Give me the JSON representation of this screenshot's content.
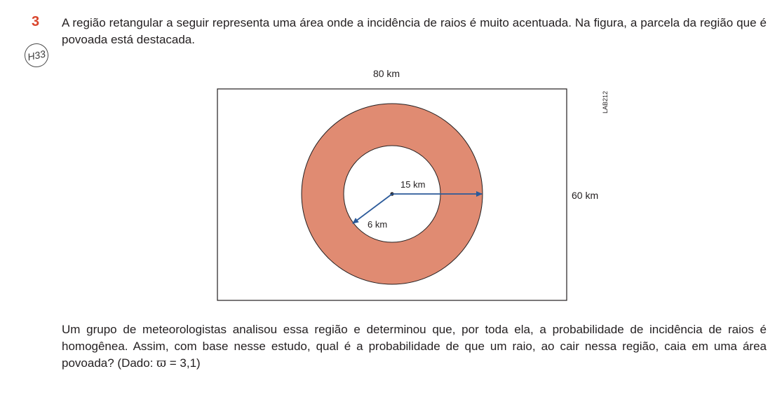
{
  "question": {
    "number": "3",
    "skill_badge": "H33",
    "statement": "A região retangular a seguir representa uma área onde a incidência de raios é muito acentuada. Na figura, a parcela da região que é povoada está destacada.",
    "prompt_main": "Um grupo de meteorologistas analisou essa região e determinou que, por toda ela, a probabilidade de incidência de raios é homogênea. Assim, com base nesse estudo, qual é a probabilidade de que um raio, ao cair nessa região, caia em uma área povoada? (Dado: ",
    "prompt_pi_symbol": "ϖ",
    "prompt_given": " = 3,1)"
  },
  "figure": {
    "width_label": "80 km",
    "height_label": "60 km",
    "outer_radius_label": "15 km",
    "inner_radius_label": "6 km",
    "code_label": "LAB212",
    "colors": {
      "ring_fill": "#e08b72",
      "arrow": "#2b5a9a",
      "border": "#231f20"
    }
  }
}
